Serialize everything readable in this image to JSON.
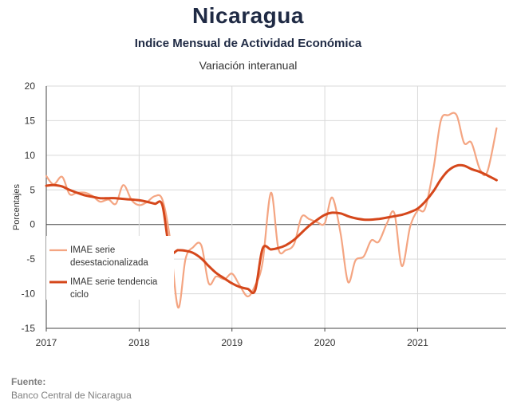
{
  "chart_data": {
    "type": "line",
    "title": "Nicaragua",
    "subtitle": "Indice Mensual de  Actividad Económica",
    "subtitle2": "Variación interanual",
    "ylabel": "Porcentajes",
    "xlabel": "",
    "ylim": [
      -15,
      20
    ],
    "yticks": [
      "20",
      "15",
      "10",
      "5",
      "0",
      "-5",
      "-10",
      "-15"
    ],
    "xlim": [
      2017,
      2021.95
    ],
    "xticks": [
      "2017",
      "2018",
      "2019",
      "2020",
      "2021"
    ],
    "grid": true,
    "legend_position": "left",
    "series": [
      {
        "name_lines": [
          "IMAE serie",
          "desestacionalizada"
        ],
        "color": "#f4a582",
        "points": [
          [
            2017.0,
            7.0
          ],
          [
            2017.08,
            5.8
          ],
          [
            2017.17,
            6.9
          ],
          [
            2017.25,
            4.4
          ],
          [
            2017.33,
            4.6
          ],
          [
            2017.42,
            4.6
          ],
          [
            2017.5,
            4.1
          ],
          [
            2017.58,
            3.3
          ],
          [
            2017.67,
            3.6
          ],
          [
            2017.75,
            3.0
          ],
          [
            2017.83,
            5.7
          ],
          [
            2017.92,
            3.5
          ],
          [
            2018.0,
            2.8
          ],
          [
            2018.08,
            3.2
          ],
          [
            2018.17,
            4.1
          ],
          [
            2018.25,
            3.6
          ],
          [
            2018.33,
            -1.8
          ],
          [
            2018.42,
            -12.0
          ],
          [
            2018.5,
            -5.0
          ],
          [
            2018.58,
            -3.3
          ],
          [
            2018.67,
            -3.0
          ],
          [
            2018.75,
            -8.5
          ],
          [
            2018.83,
            -7.5
          ],
          [
            2018.92,
            -7.9
          ],
          [
            2019.0,
            -7.1
          ],
          [
            2019.08,
            -8.7
          ],
          [
            2019.17,
            -10.4
          ],
          [
            2019.25,
            -8.8
          ],
          [
            2019.33,
            -5.5
          ],
          [
            2019.42,
            4.6
          ],
          [
            2019.5,
            -3.5
          ],
          [
            2019.58,
            -3.7
          ],
          [
            2019.67,
            -2.8
          ],
          [
            2019.75,
            1.1
          ],
          [
            2019.83,
            0.8
          ],
          [
            2019.92,
            0.3
          ],
          [
            2020.0,
            0.2
          ],
          [
            2020.08,
            3.9
          ],
          [
            2020.17,
            -1.3
          ],
          [
            2020.25,
            -8.3
          ],
          [
            2020.33,
            -5.2
          ],
          [
            2020.42,
            -4.6
          ],
          [
            2020.5,
            -2.3
          ],
          [
            2020.58,
            -2.5
          ],
          [
            2020.67,
            0.2
          ],
          [
            2020.75,
            1.6
          ],
          [
            2020.83,
            -6.0
          ],
          [
            2020.92,
            -0.3
          ],
          [
            2021.0,
            2.0
          ],
          [
            2021.08,
            2.3
          ],
          [
            2021.17,
            8.0
          ],
          [
            2021.25,
            15.0
          ],
          [
            2021.33,
            15.8
          ],
          [
            2021.42,
            15.8
          ],
          [
            2021.5,
            11.8
          ],
          [
            2021.58,
            11.8
          ],
          [
            2021.67,
            8.0
          ],
          [
            2021.75,
            7.6
          ],
          [
            2021.85,
            13.9
          ]
        ]
      },
      {
        "name_lines": [
          "IMAE serie  tendencia",
          "ciclo"
        ],
        "color": "#d5471b",
        "points": [
          [
            2017.0,
            5.6
          ],
          [
            2017.08,
            5.7
          ],
          [
            2017.17,
            5.5
          ],
          [
            2017.25,
            5.0
          ],
          [
            2017.33,
            4.6
          ],
          [
            2017.42,
            4.2
          ],
          [
            2017.5,
            4.0
          ],
          [
            2017.58,
            3.8
          ],
          [
            2017.67,
            3.8
          ],
          [
            2017.75,
            3.8
          ],
          [
            2017.83,
            3.7
          ],
          [
            2017.92,
            3.6
          ],
          [
            2018.0,
            3.5
          ],
          [
            2018.08,
            3.3
          ],
          [
            2018.17,
            3.0
          ],
          [
            2018.25,
            2.8
          ],
          [
            2018.33,
            -3.7
          ],
          [
            2018.42,
            -3.7
          ],
          [
            2018.5,
            -3.8
          ],
          [
            2018.58,
            -4.1
          ],
          [
            2018.67,
            -4.9
          ],
          [
            2018.75,
            -6.0
          ],
          [
            2018.83,
            -7.0
          ],
          [
            2018.92,
            -7.8
          ],
          [
            2019.0,
            -8.5
          ],
          [
            2019.08,
            -9.0
          ],
          [
            2019.17,
            -9.3
          ],
          [
            2019.25,
            -9.5
          ],
          [
            2019.33,
            -3.5
          ],
          [
            2019.42,
            -3.6
          ],
          [
            2019.5,
            -3.4
          ],
          [
            2019.58,
            -3.0
          ],
          [
            2019.67,
            -2.2
          ],
          [
            2019.75,
            -1.2
          ],
          [
            2019.83,
            -0.2
          ],
          [
            2019.92,
            0.7
          ],
          [
            2020.0,
            1.4
          ],
          [
            2020.08,
            1.7
          ],
          [
            2020.17,
            1.6
          ],
          [
            2020.25,
            1.2
          ],
          [
            2020.33,
            0.9
          ],
          [
            2020.42,
            0.7
          ],
          [
            2020.5,
            0.7
          ],
          [
            2020.58,
            0.8
          ],
          [
            2020.67,
            1.0
          ],
          [
            2020.75,
            1.2
          ],
          [
            2020.83,
            1.4
          ],
          [
            2020.92,
            1.8
          ],
          [
            2021.0,
            2.3
          ],
          [
            2021.08,
            3.3
          ],
          [
            2021.17,
            4.8
          ],
          [
            2021.25,
            6.5
          ],
          [
            2021.33,
            7.8
          ],
          [
            2021.42,
            8.5
          ],
          [
            2021.5,
            8.5
          ],
          [
            2021.58,
            8.0
          ],
          [
            2021.67,
            7.6
          ],
          [
            2021.75,
            7.1
          ],
          [
            2021.85,
            6.4
          ]
        ]
      }
    ]
  },
  "source": {
    "label": "Fuente:",
    "text": "Banco Central de Nicaragua"
  }
}
